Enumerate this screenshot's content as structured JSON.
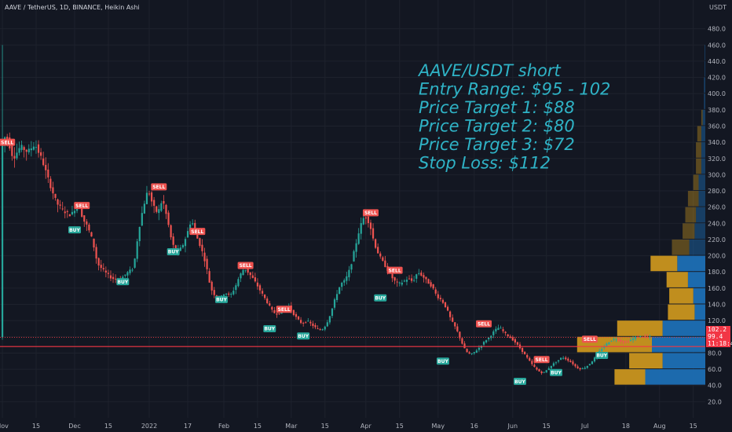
{
  "chart_data": {
    "type": "candlestick",
    "header": "AAVE / TetherUS, 1D, BINANCE, Heikin Ashi",
    "currency_label": "USDT",
    "y_ticks": [
      20,
      40,
      60,
      80,
      100,
      120,
      140,
      160,
      180,
      200,
      220,
      240,
      260,
      280,
      300,
      320,
      340,
      360,
      380,
      400,
      420,
      440,
      460,
      480
    ],
    "y_range": [
      0,
      500
    ],
    "x_ticks": [
      {
        "label": "Nov",
        "t": 0
      },
      {
        "label": "15",
        "t": 14
      },
      {
        "label": "Dec",
        "t": 30
      },
      {
        "label": "15",
        "t": 44
      },
      {
        "label": "2022",
        "t": 61
      },
      {
        "label": "17",
        "t": 77
      },
      {
        "label": "Feb",
        "t": 92
      },
      {
        "label": "15",
        "t": 106
      },
      {
        "label": "Mar",
        "t": 120
      },
      {
        "label": "15",
        "t": 134
      },
      {
        "label": "Apr",
        "t": 151
      },
      {
        "label": "15",
        "t": 165
      },
      {
        "label": "May",
        "t": 181
      },
      {
        "label": "16",
        "t": 196
      },
      {
        "label": "Jun",
        "t": 212
      },
      {
        "label": "15",
        "t": 226
      },
      {
        "label": "Jul",
        "t": 242
      },
      {
        "label": "18",
        "t": 259
      },
      {
        "label": "Aug",
        "t": 273
      },
      {
        "label": "15",
        "t": 287
      }
    ],
    "t_range": [
      -1,
      292
    ],
    "price_path": [
      [
        0,
        335
      ],
      [
        2,
        350
      ],
      [
        5,
        320
      ],
      [
        8,
        335
      ],
      [
        11,
        328
      ],
      [
        14,
        338
      ],
      [
        17,
        318
      ],
      [
        20,
        290
      ],
      [
        23,
        265
      ],
      [
        26,
        255
      ],
      [
        29,
        250
      ],
      [
        32,
        265
      ],
      [
        34,
        245
      ],
      [
        36,
        235
      ],
      [
        38,
        218
      ],
      [
        40,
        190
      ],
      [
        43,
        180
      ],
      [
        46,
        172
      ],
      [
        49,
        170
      ],
      [
        52,
        178
      ],
      [
        55,
        185
      ],
      [
        57,
        230
      ],
      [
        59,
        260
      ],
      [
        61,
        282
      ],
      [
        63,
        262
      ],
      [
        65,
        252
      ],
      [
        67,
        270
      ],
      [
        69,
        245
      ],
      [
        71,
        215
      ],
      [
        73,
        205
      ],
      [
        75,
        210
      ],
      [
        77,
        225
      ],
      [
        79,
        245
      ],
      [
        81,
        225
      ],
      [
        83,
        210
      ],
      [
        85,
        190
      ],
      [
        87,
        160
      ],
      [
        89,
        150
      ],
      [
        91,
        148
      ],
      [
        93,
        155
      ],
      [
        95,
        150
      ],
      [
        97,
        160
      ],
      [
        99,
        175
      ],
      [
        101,
        185
      ],
      [
        103,
        178
      ],
      [
        105,
        170
      ],
      [
        107,
        160
      ],
      [
        109,
        150
      ],
      [
        111,
        140
      ],
      [
        113,
        130
      ],
      [
        115,
        128
      ],
      [
        117,
        132
      ],
      [
        119,
        140
      ],
      [
        121,
        130
      ],
      [
        123,
        122
      ],
      [
        125,
        116
      ],
      [
        127,
        120
      ],
      [
        129,
        115
      ],
      [
        131,
        110
      ],
      [
        133,
        108
      ],
      [
        135,
        115
      ],
      [
        137,
        130
      ],
      [
        139,
        150
      ],
      [
        141,
        165
      ],
      [
        143,
        170
      ],
      [
        145,
        185
      ],
      [
        147,
        210
      ],
      [
        149,
        235
      ],
      [
        151,
        250
      ],
      [
        153,
        240
      ],
      [
        155,
        215
      ],
      [
        157,
        200
      ],
      [
        159,
        190
      ],
      [
        161,
        180
      ],
      [
        163,
        170
      ],
      [
        165,
        165
      ],
      [
        167,
        168
      ],
      [
        169,
        172
      ],
      [
        171,
        168
      ],
      [
        173,
        180
      ],
      [
        175,
        175
      ],
      [
        177,
        168
      ],
      [
        179,
        162
      ],
      [
        181,
        150
      ],
      [
        183,
        145
      ],
      [
        185,
        135
      ],
      [
        187,
        120
      ],
      [
        189,
        110
      ],
      [
        191,
        95
      ],
      [
        193,
        82
      ],
      [
        195,
        78
      ],
      [
        197,
        82
      ],
      [
        199,
        88
      ],
      [
        201,
        95
      ],
      [
        203,
        100
      ],
      [
        205,
        108
      ],
      [
        207,
        112
      ],
      [
        209,
        105
      ],
      [
        211,
        100
      ],
      [
        213,
        95
      ],
      [
        215,
        88
      ],
      [
        217,
        80
      ],
      [
        219,
        72
      ],
      [
        221,
        64
      ],
      [
        223,
        58
      ],
      [
        225,
        55
      ],
      [
        227,
        60
      ],
      [
        229,
        66
      ],
      [
        231,
        70
      ],
      [
        233,
        75
      ],
      [
        235,
        72
      ],
      [
        237,
        68
      ],
      [
        239,
        62
      ],
      [
        241,
        60
      ],
      [
        243,
        63
      ],
      [
        245,
        68
      ],
      [
        247,
        76
      ],
      [
        249,
        84
      ],
      [
        251,
        90
      ],
      [
        253,
        95
      ],
      [
        255,
        98
      ],
      [
        257,
        95
      ],
      [
        259,
        93
      ],
      [
        261,
        95
      ],
      [
        263,
        99
      ],
      [
        265,
        101
      ],
      [
        267,
        100
      ],
      [
        269,
        99.4
      ]
    ],
    "signals": [
      {
        "label": "SELL",
        "t": 2,
        "price": 340,
        "type": "sell"
      },
      {
        "label": "SELL",
        "t": 33,
        "price": 262,
        "type": "sell"
      },
      {
        "label": "BUY",
        "t": 30,
        "price": 232,
        "type": "buy"
      },
      {
        "label": "BUY",
        "t": 50,
        "price": 168,
        "type": "buy"
      },
      {
        "label": "SELL",
        "t": 65,
        "price": 285,
        "type": "sell"
      },
      {
        "label": "SELL",
        "t": 81,
        "price": 230,
        "type": "sell"
      },
      {
        "label": "BUY",
        "t": 71,
        "price": 205,
        "type": "buy"
      },
      {
        "label": "BUY",
        "t": 91,
        "price": 146,
        "type": "buy"
      },
      {
        "label": "SELL",
        "t": 101,
        "price": 188,
        "type": "sell"
      },
      {
        "label": "BUY",
        "t": 111,
        "price": 110,
        "type": "buy"
      },
      {
        "label": "SELL",
        "t": 117,
        "price": 134,
        "type": "sell"
      },
      {
        "label": "BUY",
        "t": 125,
        "price": 101,
        "type": "buy"
      },
      {
        "label": "SELL",
        "t": 153,
        "price": 253,
        "type": "sell"
      },
      {
        "label": "BUY",
        "t": 157,
        "price": 148,
        "type": "buy"
      },
      {
        "label": "SELL",
        "t": 163,
        "price": 182,
        "type": "sell"
      },
      {
        "label": "BUY",
        "t": 183,
        "price": 70,
        "type": "buy"
      },
      {
        "label": "SELL",
        "t": 200,
        "price": 116,
        "type": "sell"
      },
      {
        "label": "BUY",
        "t": 215,
        "price": 45,
        "type": "buy"
      },
      {
        "label": "SELL",
        "t": 224,
        "price": 72,
        "type": "sell"
      },
      {
        "label": "BUY",
        "t": 230,
        "price": 56,
        "type": "buy"
      },
      {
        "label": "SELL",
        "t": 244,
        "price": 97,
        "type": "sell"
      },
      {
        "label": "BUY",
        "t": 249,
        "price": 77,
        "type": "buy"
      }
    ],
    "horizontal_line": {
      "price": 88,
      "color": "#f23645"
    },
    "dotted_line": {
      "price": 99.4,
      "color": "#f23645"
    },
    "volume_profile": {
      "rows": [
        {
          "low": 40,
          "high": 60,
          "up": 0.23,
          "down": 0.45
        },
        {
          "low": 60,
          "high": 80,
          "up": 0.25,
          "down": 0.32
        },
        {
          "low": 80,
          "high": 100,
          "up": 0.56,
          "down": 0.4
        },
        {
          "low": 100,
          "high": 120,
          "up": 0.34,
          "down": 0.32
        },
        {
          "low": 120,
          "high": 140,
          "up": 0.2,
          "down": 0.08
        },
        {
          "low": 140,
          "high": 160,
          "up": 0.18,
          "down": 0.09
        },
        {
          "low": 160,
          "high": 180,
          "up": 0.16,
          "down": 0.13
        },
        {
          "low": 180,
          "high": 200,
          "up": 0.2,
          "down": 0.21
        },
        {
          "low": 200,
          "high": 220,
          "up": 0.13,
          "down": 0.12
        },
        {
          "low": 220,
          "high": 240,
          "up": 0.09,
          "down": 0.08
        },
        {
          "low": 240,
          "high": 260,
          "up": 0.08,
          "down": 0.07
        },
        {
          "low": 260,
          "high": 280,
          "up": 0.08,
          "down": 0.05
        },
        {
          "low": 280,
          "high": 300,
          "up": 0.04,
          "down": 0.05
        },
        {
          "low": 300,
          "high": 320,
          "up": 0.04,
          "down": 0.03
        },
        {
          "low": 320,
          "high": 340,
          "up": 0.04,
          "down": 0.03
        },
        {
          "low": 340,
          "high": 360,
          "up": 0.03,
          "down": 0.03
        },
        {
          "low": 360,
          "high": 380,
          "up": 0.01,
          "down": 0.02
        },
        {
          "low": 380,
          "high": 400,
          "up": 0.0,
          "down": 0.01
        },
        {
          "low": 400,
          "high": 420,
          "up": 0.0,
          "down": 0.01
        },
        {
          "low": 420,
          "high": 440,
          "up": 0.0,
          "down": 0.005
        },
        {
          "low": 440,
          "high": 460,
          "up": 0.0,
          "down": 0.005
        }
      ],
      "colors": {
        "up": "#c9951f",
        "down": "#1c6fb5"
      }
    },
    "price_labels": [
      {
        "text": "102.2",
        "price": 102.2
      },
      {
        "text": "99.4",
        "price": 99.4
      },
      {
        "text": "11:18:42",
        "price": 92
      }
    ],
    "annotation": {
      "lines": [
        "AAVE/USDT short",
        "Entry Range: $95 - 102",
        "Price Target 1: $88",
        "Price Target 2: $80",
        "Price Target 3: $72",
        "Stop Loss: $112"
      ]
    },
    "colors": {
      "up": "#26a69a",
      "down": "#ef5350",
      "buy": "#26a69a",
      "sell": "#ef5350",
      "grid": "#1e222d",
      "background": "#131722"
    }
  }
}
